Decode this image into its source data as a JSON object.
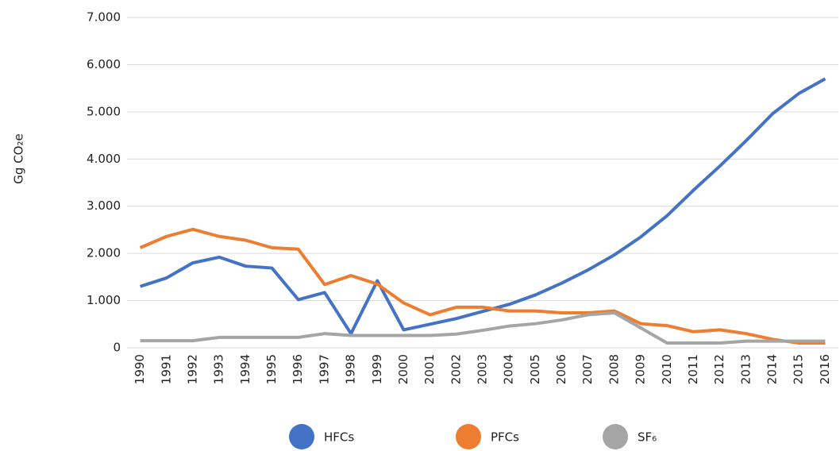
{
  "chart_data": {
    "type": "line",
    "y_label": "Gg CO₂e",
    "categories": [
      "1990",
      "1991",
      "1992",
      "1993",
      "1994",
      "1995",
      "1996",
      "1997",
      "1998",
      "1999",
      "2000",
      "2001",
      "2002",
      "2003",
      "2004",
      "2005",
      "2006",
      "2007",
      "2008",
      "2009",
      "2010",
      "2011",
      "2012",
      "2013",
      "2014",
      "2015",
      "2016"
    ],
    "series": [
      {
        "name": "HFCs",
        "color": "#4472c4",
        "values": [
          1300,
          1480,
          1800,
          1920,
          1730,
          1690,
          1020,
          1170,
          300,
          1420,
          380,
          500,
          620,
          770,
          920,
          1120,
          1370,
          1650,
          1970,
          2350,
          2800,
          3340,
          3850,
          4390,
          4960,
          5390,
          5700
        ]
      },
      {
        "name": "PFCs",
        "color": "#ed7d31",
        "values": [
          2120,
          2360,
          2510,
          2360,
          2280,
          2120,
          2090,
          1340,
          1530,
          1350,
          950,
          700,
          860,
          860,
          780,
          780,
          740,
          740,
          780,
          510,
          470,
          340,
          380,
          300,
          180,
          100,
          100
        ]
      },
      {
        "name": "SF₆",
        "color": "#a5a5a5",
        "values": [
          150,
          150,
          150,
          220,
          220,
          220,
          220,
          300,
          260,
          260,
          260,
          260,
          290,
          370,
          460,
          510,
          590,
          700,
          740,
          420,
          100,
          100,
          100,
          140,
          140,
          140,
          140
        ]
      }
    ],
    "ylim": [
      0,
      7000
    ],
    "yticks": [
      0,
      {
        "value": 1000,
        "label": "1.000"
      },
      {
        "value": 2000,
        "label": "2.000"
      },
      {
        "value": 3000,
        "label": "3.000"
      },
      {
        "value": 4000,
        "label": "4.000"
      },
      {
        "value": 5000,
        "label": "5.000"
      },
      {
        "value": 6000,
        "label": "6.000"
      },
      {
        "value": 7000,
        "label": "7.000"
      }
    ],
    "grid": true,
    "legend": "bottom"
  }
}
